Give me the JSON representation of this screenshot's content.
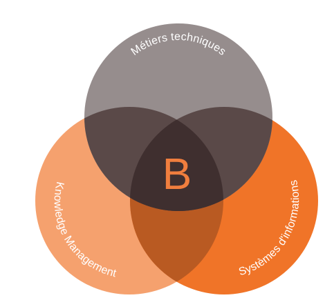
{
  "diagram": {
    "center_label": "B",
    "circles": [
      {
        "id": "top",
        "label": "Métiers techniques",
        "color": "#968d8d"
      },
      {
        "id": "left",
        "label": "Knowledge Management",
        "color": "#f5a16e"
      },
      {
        "id": "right",
        "label": "Systèmes d'informations",
        "color": "#f07428"
      }
    ],
    "overlap_colors": {
      "top_left": "#5a4948",
      "top_right": "#5a4948",
      "left_right": "#b95a22",
      "center": "#3f2f2f"
    },
    "center_letter_color": "#f07e3e"
  }
}
